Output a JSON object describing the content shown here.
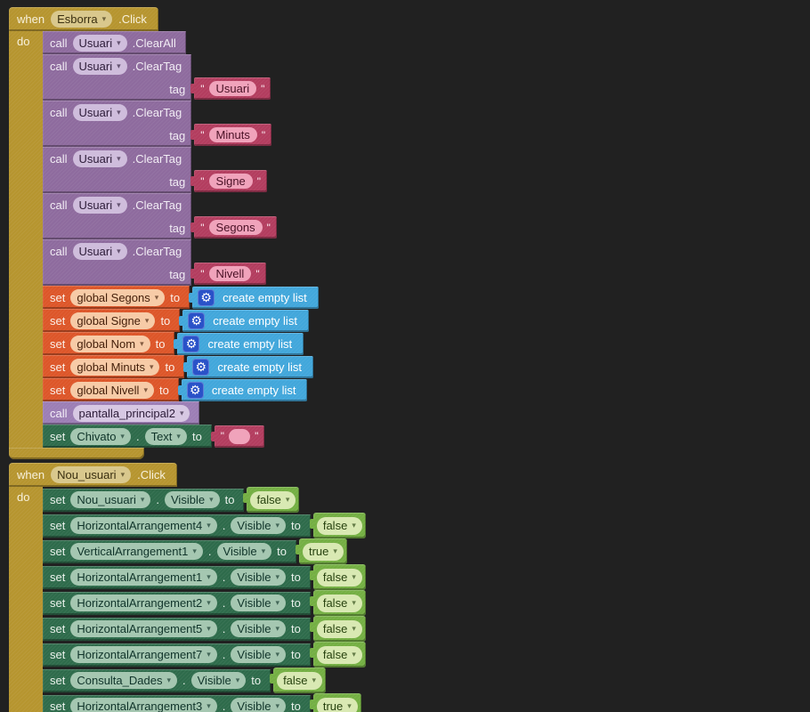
{
  "ui": {
    "dot": ".",
    "quote": "\"",
    "icons": {
      "chevron_down": "▾",
      "gear": "⚙"
    }
  },
  "colors": {
    "canvas_background": "#212121",
    "event_gold": "#B6952F",
    "event_dropdown": "#D9C88D",
    "component_call_purple": "#8E6B9E",
    "procedure_call_purple": "#9C7EB5",
    "string_crimson": "#B33D5F",
    "string_field_pink": "#F0A3BB",
    "variable_orange": "#DD5629",
    "list_blue": "#42A7DB",
    "mutator_blue": "#2A52C8",
    "property_set_green": "#2E6B4B",
    "logic_green": "#74AF43",
    "logic_field": "#D9E9B3"
  },
  "blocks": [
    {
      "kind": "when",
      "when_label": "when",
      "component": "Esborra",
      "event": ".Click",
      "do_label": "do",
      "statements": [
        {
          "kind": "call",
          "call_label": "call",
          "component": "Usuari",
          "method": ".ClearAll"
        },
        {
          "kind": "call_tag",
          "call_label": "call",
          "component": "Usuari",
          "method": ".ClearTag",
          "tag_label": "tag",
          "tag_value": "Usuari"
        },
        {
          "kind": "call_tag",
          "call_label": "call",
          "component": "Usuari",
          "method": ".ClearTag",
          "tag_label": "tag",
          "tag_value": "Minuts"
        },
        {
          "kind": "call_tag",
          "call_label": "call",
          "component": "Usuari",
          "method": ".ClearTag",
          "tag_label": "tag",
          "tag_value": "Signe"
        },
        {
          "kind": "call_tag",
          "call_label": "call",
          "component": "Usuari",
          "method": ".ClearTag",
          "tag_label": "tag",
          "tag_value": "Segons"
        },
        {
          "kind": "call_tag",
          "call_label": "call",
          "component": "Usuari",
          "method": ".ClearTag",
          "tag_label": "tag",
          "tag_value": "Nivell"
        },
        {
          "kind": "set_global",
          "set_label": "set",
          "variable": "global Segons",
          "to_label": "to",
          "value_label": "create empty list"
        },
        {
          "kind": "set_global",
          "set_label": "set",
          "variable": "global Signe",
          "to_label": "to",
          "value_label": "create empty list"
        },
        {
          "kind": "set_global",
          "set_label": "set",
          "variable": "global Nom",
          "to_label": "to",
          "value_label": "create empty list"
        },
        {
          "kind": "set_global",
          "set_label": "set",
          "variable": "global Minuts",
          "to_label": "to",
          "value_label": "create empty list"
        },
        {
          "kind": "set_global",
          "set_label": "set",
          "variable": "global Nivell",
          "to_label": "to",
          "value_label": "create empty list"
        },
        {
          "kind": "call_proc",
          "call_label": "call",
          "procedure": "pantalla_principal2"
        },
        {
          "kind": "set_prop",
          "set_label": "set",
          "component": "Chivato",
          "property": "Text",
          "to_label": "to",
          "value_kind": "string",
          "value": ""
        }
      ]
    },
    {
      "kind": "when",
      "when_label": "when",
      "component": "Nou_usuari",
      "event": ".Click",
      "do_label": "do",
      "statements": [
        {
          "kind": "set_prop",
          "set_label": "set",
          "component": "Nou_usuari",
          "property": "Visible",
          "to_label": "to",
          "value_kind": "logic",
          "value": "false"
        },
        {
          "kind": "set_prop",
          "set_label": "set",
          "component": "HorizontalArrangement4",
          "property": "Visible",
          "to_label": "to",
          "value_kind": "logic",
          "value": "false"
        },
        {
          "kind": "set_prop",
          "set_label": "set",
          "component": "VerticalArrangement1",
          "property": "Visible",
          "to_label": "to",
          "value_kind": "logic",
          "value": "true"
        },
        {
          "kind": "set_prop",
          "set_label": "set",
          "component": "HorizontalArrangement1",
          "property": "Visible",
          "to_label": "to",
          "value_kind": "logic",
          "value": "false"
        },
        {
          "kind": "set_prop",
          "set_label": "set",
          "component": "HorizontalArrangement2",
          "property": "Visible",
          "to_label": "to",
          "value_kind": "logic",
          "value": "false"
        },
        {
          "kind": "set_prop",
          "set_label": "set",
          "component": "HorizontalArrangement5",
          "property": "Visible",
          "to_label": "to",
          "value_kind": "logic",
          "value": "false"
        },
        {
          "kind": "set_prop",
          "set_label": "set",
          "component": "HorizontalArrangement7",
          "property": "Visible",
          "to_label": "to",
          "value_kind": "logic",
          "value": "false"
        },
        {
          "kind": "set_prop",
          "set_label": "set",
          "component": "Consulta_Dades",
          "property": "Visible",
          "to_label": "to",
          "value_kind": "logic",
          "value": "false"
        },
        {
          "kind": "set_prop",
          "set_label": "set",
          "component": "HorizontalArrangement3",
          "property": "Visible",
          "to_label": "to",
          "value_kind": "logic",
          "value": "true"
        }
      ]
    }
  ]
}
